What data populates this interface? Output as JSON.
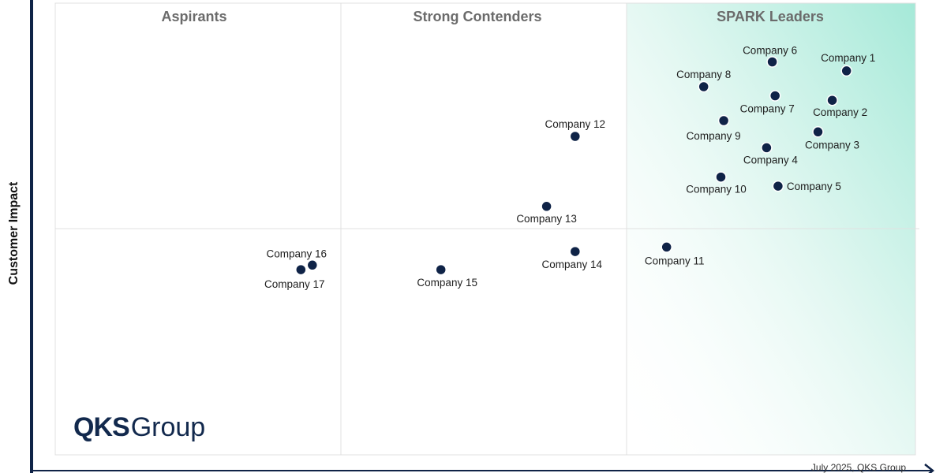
{
  "chart_data": {
    "type": "scatter",
    "title": "",
    "xlabel": "",
    "ylabel": "Customer Impact",
    "xlim": [
      0,
      3
    ],
    "ylim": [
      0,
      2
    ],
    "grid": true,
    "quadrants": [
      "Aspirants",
      "Strong Contenders",
      "SPARK Leaders"
    ],
    "points": [
      {
        "label": "Company 1",
        "x": 2.77,
        "y": 1.7
      },
      {
        "label": "Company 2",
        "x": 2.72,
        "y": 1.57
      },
      {
        "label": "Company 3",
        "x": 2.67,
        "y": 1.43
      },
      {
        "label": "Company 4",
        "x": 2.49,
        "y": 1.36
      },
      {
        "label": "Company 5",
        "x": 2.53,
        "y": 1.19
      },
      {
        "label": "Company 6",
        "x": 2.51,
        "y": 1.74
      },
      {
        "label": "Company 7",
        "x": 2.52,
        "y": 1.59
      },
      {
        "label": "Company 8",
        "x": 2.27,
        "y": 1.63
      },
      {
        "label": "Company 9",
        "x": 2.34,
        "y": 1.48
      },
      {
        "label": "Company 10",
        "x": 2.33,
        "y": 1.23
      },
      {
        "label": "Company 11",
        "x": 2.14,
        "y": 0.92
      },
      {
        "label": "Company 12",
        "x": 1.82,
        "y": 1.41
      },
      {
        "label": "Company 13",
        "x": 1.72,
        "y": 1.1
      },
      {
        "label": "Company 14",
        "x": 1.82,
        "y": 0.9
      },
      {
        "label": "Company 15",
        "x": 1.35,
        "y": 0.82
      },
      {
        "label": "Company 16",
        "x": 0.9,
        "y": 0.84
      },
      {
        "label": "Company 17",
        "x": 0.86,
        "y": 0.82
      }
    ],
    "colors": {
      "point": "#0f2347",
      "leaders_gradient": "#a5e9d8",
      "grid": "#e1e1e1",
      "axis": "#0f2347"
    }
  },
  "footer": {
    "note": "July 2025, QKS Group"
  },
  "logo": {
    "strong": "QKS",
    "light": "Group"
  }
}
